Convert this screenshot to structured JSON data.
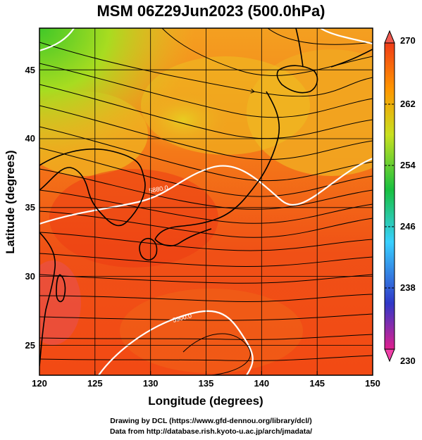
{
  "title": "MSM 06Z29Jun2023 (500.0hPa)",
  "map": {
    "xlabel": "Longitude (degrees)",
    "ylabel": "Latitude  (degrees)",
    "xticks": [
      "120",
      "125",
      "130",
      "135",
      "140",
      "145",
      "150"
    ],
    "yticks": [
      "25",
      "30",
      "35",
      "40",
      "45"
    ],
    "lon_range": [
      120,
      150
    ],
    "lat_range": [
      22.4,
      47.6
    ],
    "contours": [
      {
        "label": "5880.0",
        "level": 5880
      },
      {
        "label": "5900.0",
        "level": 5900
      }
    ],
    "field": "streamlines over temperature (K)"
  },
  "colorbar": {
    "ticks": [
      "270",
      "262",
      "254",
      "246",
      "238",
      "230"
    ],
    "min": 230,
    "max": 270,
    "colors": [
      "#e0208e",
      "#3038c8",
      "#38d0ff",
      "#18c040",
      "#c8e020",
      "#ff9600",
      "#f03c18"
    ]
  },
  "credits": {
    "line1": "Drawing by DCL (https://www.gfd-dennou.org/library/dcl/)",
    "line2": "Data from http://database.rish.kyoto-u.ac.jp/arch/jmadata/"
  }
}
